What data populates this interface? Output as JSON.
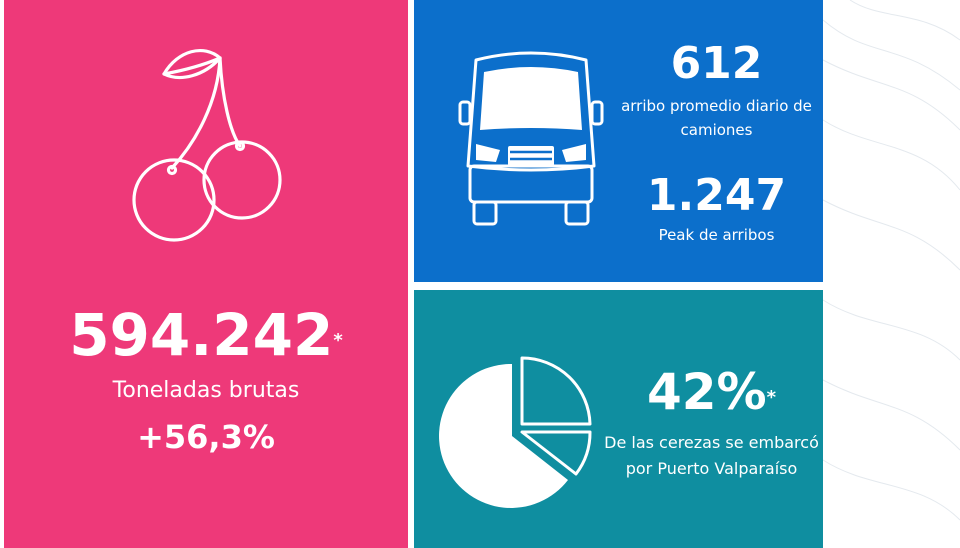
{
  "cherries": {
    "icon": "cherry-icon",
    "tonnage": "594.242",
    "tonnage_mark": "*",
    "tonnage_label": "Toneladas brutas",
    "growth": "+56,3%",
    "color": "#ee3979"
  },
  "trucks": {
    "icon": "truck-icon",
    "daily_arrivals": "612",
    "daily_arrivals_label": "arribo promedio diario de camiones",
    "peak": "1.247",
    "peak_label": "Peak de arribos",
    "color": "#0c6fcb"
  },
  "share": {
    "icon": "pie-chart-icon",
    "percent": "42%",
    "percent_mark": "*",
    "label": "De las cerezas se embarcó por Puerto Valparaíso",
    "color": "#0f8ea0"
  }
}
